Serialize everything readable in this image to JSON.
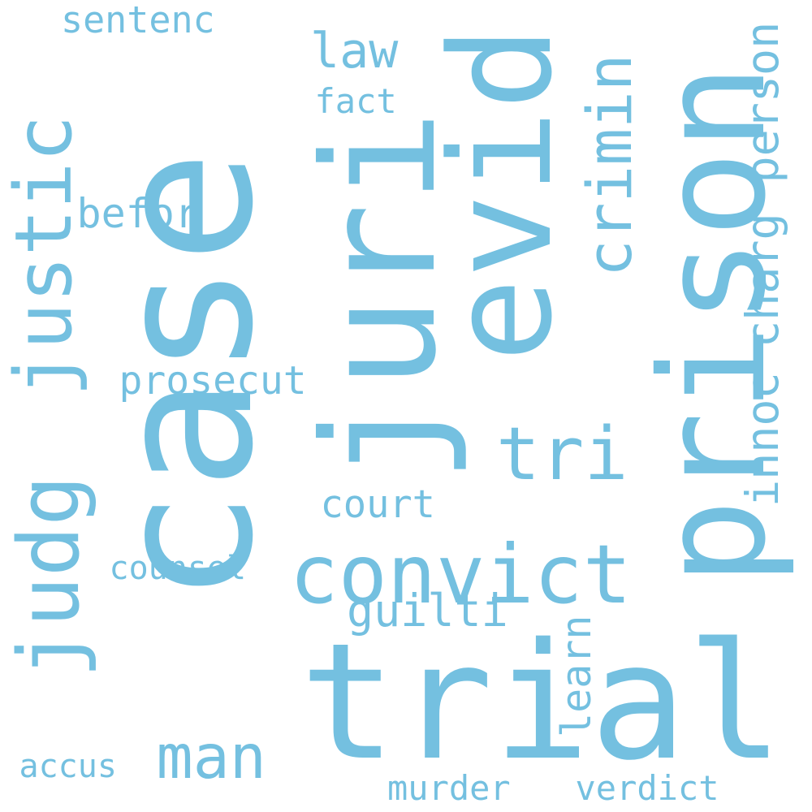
{
  "color": "#74c0e0",
  "words": [
    {
      "id": "case",
      "text": "case"
    },
    {
      "id": "prison",
      "text": "prison"
    },
    {
      "id": "juri",
      "text": "juri"
    },
    {
      "id": "trial",
      "text": "trial"
    },
    {
      "id": "evid",
      "text": "evid"
    },
    {
      "id": "justic",
      "text": "justic"
    },
    {
      "id": "convict",
      "text": "convict"
    },
    {
      "id": "judg",
      "text": "judg"
    },
    {
      "id": "crimin",
      "text": "crimin"
    },
    {
      "id": "tri",
      "text": "tri"
    },
    {
      "id": "man",
      "text": "man"
    },
    {
      "id": "law",
      "text": "law"
    },
    {
      "id": "prosecut",
      "text": "prosecut"
    },
    {
      "id": "guilti",
      "text": "guilti"
    },
    {
      "id": "person",
      "text": "person"
    },
    {
      "id": "charg",
      "text": "charg"
    },
    {
      "id": "innoc",
      "text": "innoc"
    },
    {
      "id": "court",
      "text": "court"
    },
    {
      "id": "counsel",
      "text": "counsel"
    },
    {
      "id": "befor",
      "text": "befor"
    },
    {
      "id": "sentenc",
      "text": "sentenc"
    },
    {
      "id": "fact",
      "text": "fact"
    },
    {
      "id": "learn",
      "text": "learn"
    },
    {
      "id": "murder",
      "text": "murder"
    },
    {
      "id": "verdict",
      "text": "verdict"
    },
    {
      "id": "accus",
      "text": "accus"
    }
  ]
}
